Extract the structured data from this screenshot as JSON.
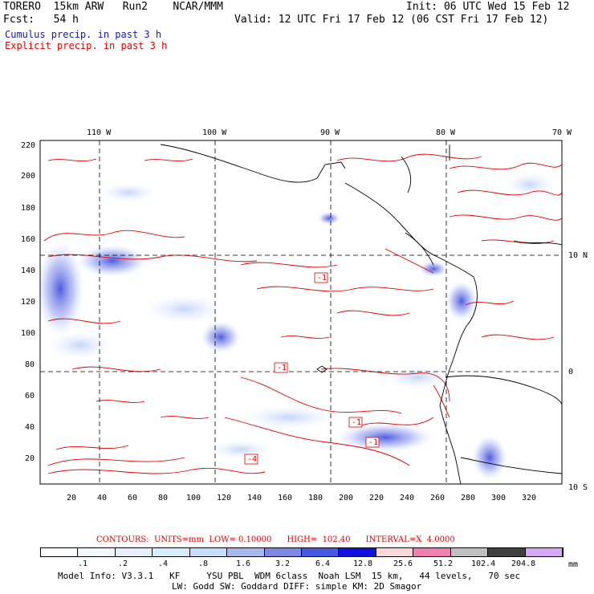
{
  "header": {
    "model": "TORERO  15km ARW   Run2    NCAR/MMM",
    "init": "Init: 06 UTC Wed 15 Feb 12",
    "fcst": "Fcst:   54 h",
    "valid": "Valid: 12 UTC Fri 17 Feb 12 (06 CST Fri 17 Feb 12)",
    "legend_cumulus": "Cumulus precip. in past 3 h",
    "legend_explicit": "Explicit precip. in past 3 h",
    "cumulus_color": "#1a1aaa",
    "explicit_color": "#e00000"
  },
  "axes": {
    "top_lon": [
      "110 W",
      "100 W",
      "90 W",
      "80 W",
      "70 W"
    ],
    "right_lat": [
      "10 N",
      "0",
      "10 S"
    ],
    "left_y": [
      "220",
      "200",
      "180",
      "160",
      "140",
      "120",
      "100",
      "80",
      "60",
      "40",
      "20"
    ],
    "bottom_x": [
      "20",
      "40",
      "60",
      "80",
      "100",
      "120",
      "140",
      "160",
      "180",
      "200",
      "220",
      "240",
      "260",
      "280",
      "300",
      "320"
    ]
  },
  "contour_labels": [
    "-1",
    "-1",
    "-1",
    "-1",
    "-4"
  ],
  "contours_line": "CONTOURS:  UNITS=mm  LOW= 0.10000      HIGH=  102.40      INTERVAL=X  4.0000",
  "colorbar": {
    "labels": [
      ".1",
      ".2",
      ".4",
      ".8",
      "1.6",
      "3.2",
      "6.4",
      "12.8",
      "25.6",
      "51.2",
      "102.4",
      "204.8"
    ],
    "unit": "mm",
    "colors": [
      "#ffffff",
      "#f4f8ff",
      "#e6f0ff",
      "#d8ecff",
      "#c8dcff",
      "#aab8f0",
      "#7f88e8",
      "#4858e0",
      "#1010e0",
      "#fcd8d8",
      "#f080b0",
      "#c0c0c0",
      "#404040",
      "#d8a8f8"
    ]
  },
  "model_info": [
    "Model Info: V3.3.1   KF     YSU PBL  WDM 6class  Noah LSM  15 km,   44 levels,   70 sec",
    "LW: Godd SW: Goddard DIFF: simple KM: 2D Smagor"
  ]
}
